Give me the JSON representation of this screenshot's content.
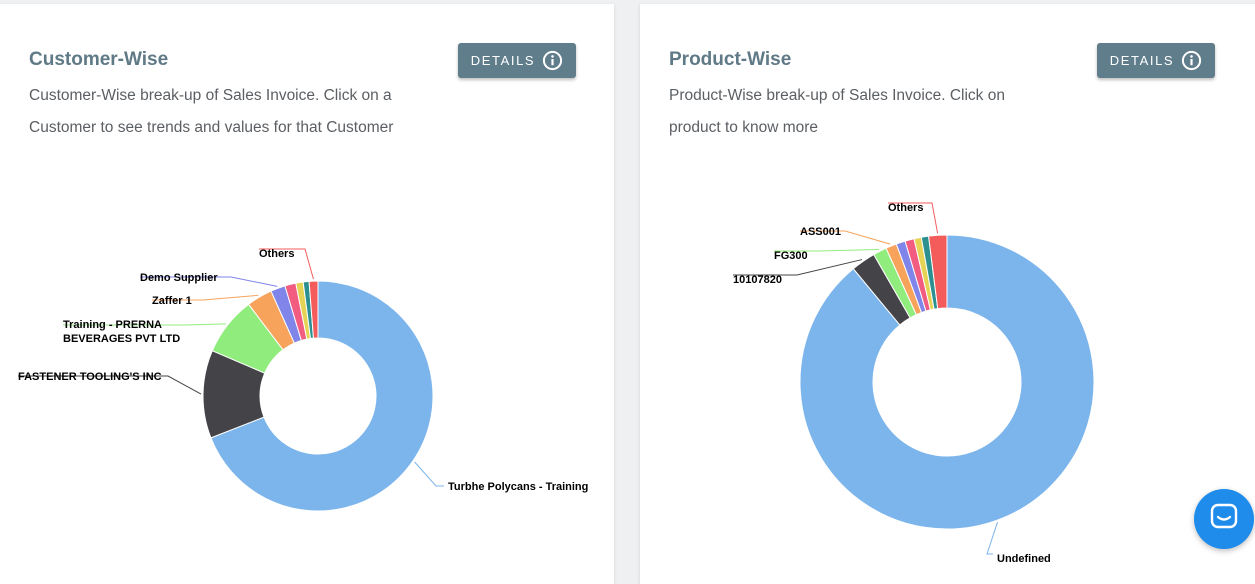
{
  "cards": [
    {
      "title": "Customer-Wise",
      "description": "Customer-Wise break-up of Sales Invoice. Click on a Customer to see trends and values for that Customer",
      "details_label": "DETAILS",
      "details_icon": "info-icon"
    },
    {
      "title": "Product-Wise",
      "description": "Product-Wise break-up of Sales Invoice. Click on product to know more",
      "details_label": "DETAILS",
      "details_icon": "info-icon"
    }
  ],
  "chat_widget": {
    "icon": "chat-icon",
    "color": "#1f8ceb"
  },
  "chart_data": [
    {
      "type": "pie",
      "donut": true,
      "title": "Customer-Wise",
      "slices": [
        {
          "label": "Turbhe Polycans - Training",
          "value": 67.0,
          "color": "#7cb5ec"
        },
        {
          "label": "FASTENER TOOLING'S INC",
          "value": 12.0,
          "color": "#434348"
        },
        {
          "label": "Training - PRERNA BEVERAGES PVT LTD",
          "value": 8.0,
          "color": "#90ed7d"
        },
        {
          "label": "Zaffer 1",
          "value": 3.5,
          "color": "#f7a35c"
        },
        {
          "label": "Demo Supplier",
          "value": 2.0,
          "color": "#8085e9"
        },
        {
          "label": "",
          "value": 1.5,
          "color": "#f15c80"
        },
        {
          "label": "",
          "value": 1.0,
          "color": "#e4d354"
        },
        {
          "label": "",
          "value": 0.8,
          "color": "#2b908f"
        },
        {
          "label": "Others",
          "value": 1.2,
          "color": "#f45b5b"
        }
      ]
    },
    {
      "type": "pie",
      "donut": true,
      "title": "Product-Wise",
      "slices": [
        {
          "label": "Undefined",
          "value": 89.0,
          "color": "#7cb5ec"
        },
        {
          "label": "10107820",
          "value": 2.7,
          "color": "#434348"
        },
        {
          "label": "FG300",
          "value": 1.5,
          "color": "#90ed7d"
        },
        {
          "label": "ASS001",
          "value": 1.2,
          "color": "#f7a35c"
        },
        {
          "label": "",
          "value": 1.0,
          "color": "#8085e9"
        },
        {
          "label": "",
          "value": 1.0,
          "color": "#f15c80"
        },
        {
          "label": "",
          "value": 0.8,
          "color": "#e4d354"
        },
        {
          "label": "",
          "value": 0.8,
          "color": "#2b908f"
        },
        {
          "label": "Others",
          "value": 2.0,
          "color": "#f45b5b"
        }
      ]
    }
  ]
}
